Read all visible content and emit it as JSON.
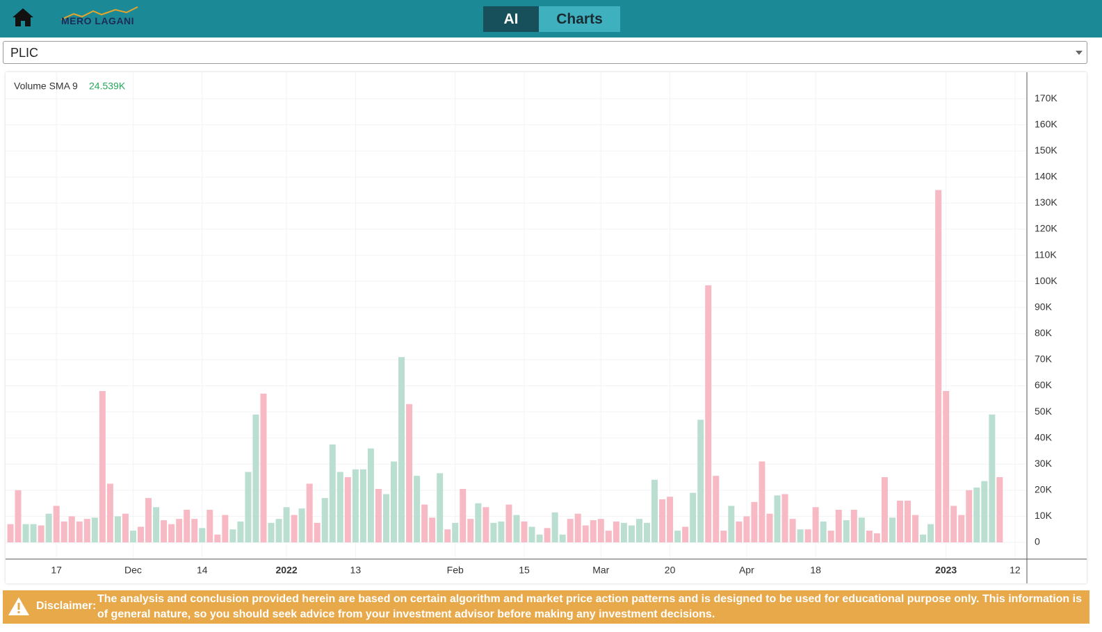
{
  "header": {
    "logo": "MERO LAGANI",
    "tabs": [
      "AI",
      "Charts"
    ]
  },
  "selector": {
    "value": "PLIC"
  },
  "chart_data": {
    "type": "bar",
    "legend": {
      "label": "Volume SMA 9",
      "value": "24.539K"
    },
    "categories": [
      null,
      null,
      null,
      null,
      null,
      null,
      "17",
      null,
      null,
      null,
      null,
      null,
      null,
      null,
      null,
      null,
      "Dec",
      null,
      null,
      null,
      null,
      null,
      null,
      null,
      null,
      "14",
      null,
      null,
      null,
      null,
      null,
      null,
      null,
      null,
      null,
      null,
      "2022",
      null,
      null,
      null,
      null,
      null,
      null,
      null,
      null,
      "13",
      null,
      null,
      null,
      null,
      null,
      null,
      null,
      null,
      null,
      null,
      null,
      null,
      "Feb",
      null,
      null,
      null,
      null,
      null,
      null,
      null,
      null,
      "15",
      null,
      null,
      null,
      null,
      null,
      null,
      null,
      null,
      null,
      "Mar",
      null,
      null,
      null,
      null,
      null,
      null,
      null,
      null,
      "20",
      null,
      null,
      null,
      null,
      null,
      null,
      null,
      null,
      null,
      "Apr",
      null,
      null,
      null,
      null,
      null,
      null,
      null,
      null,
      "18",
      null,
      null,
      null,
      null,
      null,
      null,
      null,
      null,
      null,
      null,
      null,
      null,
      null,
      null,
      null,
      null,
      "2023",
      null,
      null,
      null,
      null,
      null,
      null,
      null,
      null,
      "12"
    ],
    "values": [
      7000,
      20000,
      7000,
      7000,
      6500,
      11000,
      14000,
      8000,
      10000,
      8000,
      9000,
      9500,
      58000,
      22500,
      10000,
      11000,
      4500,
      6000,
      17000,
      13500,
      8500,
      7000,
      9000,
      12500,
      9000,
      5500,
      12500,
      3000,
      10500,
      5000,
      8000,
      27000,
      49000,
      57000,
      7500,
      9000,
      13500,
      10500,
      13000,
      22500,
      7500,
      17000,
      37500,
      27000,
      25000,
      28000,
      28000,
      36000,
      20500,
      18500,
      31000,
      71000,
      53000,
      25500,
      14500,
      9500,
      26500,
      5000,
      7500,
      20500,
      9000,
      15000,
      13500,
      7500,
      8000,
      14500,
      10500,
      8000,
      6000,
      3000,
      5500,
      11500,
      3000,
      9000,
      11000,
      6500,
      8500,
      9000,
      4500,
      8000,
      7500,
      6500,
      9000,
      7500,
      24000,
      16500,
      17500,
      4500,
      6000,
      19000,
      47000,
      98500,
      25500,
      4500,
      14000,
      8000,
      10000,
      15500,
      31000,
      11000,
      18000,
      18500,
      9000,
      5000,
      5000,
      13500,
      8000,
      4500,
      12500,
      8500,
      12500,
      9500,
      4500,
      3500,
      25000,
      9500,
      16000,
      16000,
      10500,
      3000,
      7000,
      135000,
      58000,
      14000,
      10500,
      20000,
      21000,
      23500,
      49000,
      25000,
      null,
      null
    ],
    "colors": [
      "#f7bac4",
      "#f7bac4",
      "#badfd0",
      "#badfd0",
      "#f7bac4",
      "#badfd0",
      "#f7bac4",
      "#f7bac4",
      "#f7bac4",
      "#f7bac4",
      "#f7bac4",
      "#badfd0",
      "#f7bac4",
      "#f7bac4",
      "#badfd0",
      "#f7bac4",
      "#badfd0",
      "#f7bac4",
      "#f7bac4",
      "#badfd0",
      "#f7bac4",
      "#f7bac4",
      "#f7bac4",
      "#f7bac4",
      "#f7bac4",
      "#badfd0",
      "#f7bac4",
      "#f7bac4",
      "#f7bac4",
      "#badfd0",
      "#badfd0",
      "#badfd0",
      "#badfd0",
      "#f7bac4",
      "#badfd0",
      "#badfd0",
      "#badfd0",
      "#f7bac4",
      "#badfd0",
      "#f7bac4",
      "#f7bac4",
      "#badfd0",
      "#badfd0",
      "#badfd0",
      "#f7bac4",
      "#badfd0",
      "#badfd0",
      "#badfd0",
      "#f7bac4",
      "#badfd0",
      "#badfd0",
      "#badfd0",
      "#f7bac4",
      "#badfd0",
      "#f7bac4",
      "#f7bac4",
      "#badfd0",
      "#f7bac4",
      "#badfd0",
      "#f7bac4",
      "#f7bac4",
      "#badfd0",
      "#f7bac4",
      "#badfd0",
      "#badfd0",
      "#f7bac4",
      "#badfd0",
      "#f7bac4",
      "#badfd0",
      "#badfd0",
      "#f7bac4",
      "#badfd0",
      "#badfd0",
      "#f7bac4",
      "#f7bac4",
      "#f7bac4",
      "#f7bac4",
      "#f7bac4",
      "#f7bac4",
      "#f7bac4",
      "#badfd0",
      "#badfd0",
      "#badfd0",
      "#badfd0",
      "#badfd0",
      "#f7bac4",
      "#f7bac4",
      "#badfd0",
      "#f7bac4",
      "#badfd0",
      "#badfd0",
      "#f7bac4",
      "#f7bac4",
      "#f7bac4",
      "#badfd0",
      "#f7bac4",
      "#f7bac4",
      "#f7bac4",
      "#f7bac4",
      "#f7bac4",
      "#badfd0",
      "#f7bac4",
      "#f7bac4",
      "#badfd0",
      "#f7bac4",
      "#f7bac4",
      "#badfd0",
      "#f7bac4",
      "#f7bac4",
      "#badfd0",
      "#f7bac4",
      "#badfd0",
      "#f7bac4",
      "#f7bac4",
      "#f7bac4",
      "#badfd0",
      "#f7bac4",
      "#f7bac4",
      "#f7bac4",
      "#badfd0",
      "#badfd0",
      "#f7bac4",
      "#f7bac4",
      "#f7bac4",
      "#f7bac4",
      "#f7bac4",
      "#badfd0",
      "#badfd0",
      "#badfd0",
      "#f7bac4",
      null,
      null
    ],
    "ylim": [
      0,
      180000
    ],
    "yticks": [
      0,
      {
        "value": 10000,
        "label": "10K"
      },
      {
        "value": 20000,
        "label": "20K"
      },
      {
        "value": 30000,
        "label": "30K"
      },
      {
        "value": 40000,
        "label": "40K"
      },
      {
        "value": 50000,
        "label": "50K"
      },
      {
        "value": 60000,
        "label": "60K"
      },
      {
        "value": 70000,
        "label": "70K"
      },
      {
        "value": 80000,
        "label": "80K"
      },
      {
        "value": 90000,
        "label": "90K"
      },
      {
        "value": 100000,
        "label": "100K"
      },
      {
        "value": 110000,
        "label": "110K"
      },
      {
        "value": 120000,
        "label": "120K"
      },
      {
        "value": 130000,
        "label": "130K"
      },
      {
        "value": 140000,
        "label": "140K"
      },
      {
        "value": 150000,
        "label": "150K"
      },
      {
        "value": 160000,
        "label": "160K"
      },
      {
        "value": 170000,
        "label": "170K"
      }
    ],
    "grid": true
  },
  "disclaimer": {
    "label": "Disclaimer:",
    "text": "The analysis and conclusion provided herein are based on certain algorithm and market price action patterns and is designed to be used for educational purpose only. This information is of general nature, so you should seek advice from your investment advisor before making any investment decisions."
  }
}
